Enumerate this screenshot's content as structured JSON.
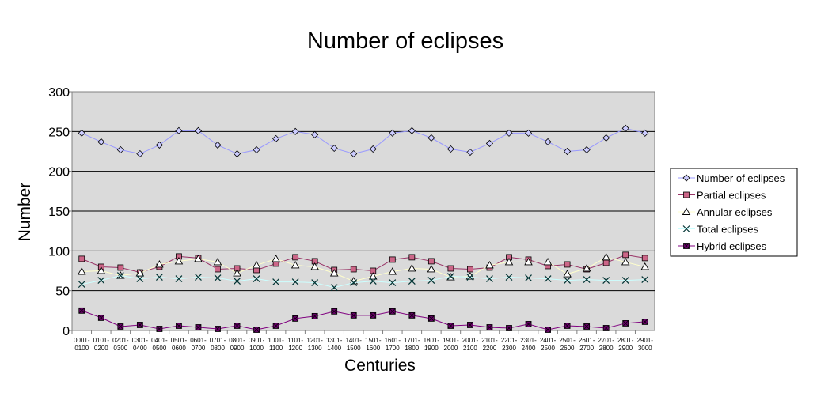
{
  "chart_data": {
    "type": "line",
    "title": "Number of eclipses",
    "xlabel": "Centuries",
    "ylabel": "Number",
    "ylim": [
      0,
      300
    ],
    "yticks": [
      0,
      50,
      100,
      150,
      200,
      250,
      300
    ],
    "grid": true,
    "legend_position": "right",
    "categories": [
      [
        "0001-",
        "0100"
      ],
      [
        "0101-",
        "0200"
      ],
      [
        "0201-",
        "0300"
      ],
      [
        "0301-",
        "0400"
      ],
      [
        "0401-",
        "0500"
      ],
      [
        "0501-",
        "0600"
      ],
      [
        "0601-",
        "0700"
      ],
      [
        "0701-",
        "0800"
      ],
      [
        "0801-",
        "0900"
      ],
      [
        "0901-",
        "1000"
      ],
      [
        "1001-",
        "1100"
      ],
      [
        "1101-",
        "1200"
      ],
      [
        "1201-",
        "1300"
      ],
      [
        "1301-",
        "1400"
      ],
      [
        "1401-",
        "1500"
      ],
      [
        "1501-",
        "1600"
      ],
      [
        "1601-",
        "1700"
      ],
      [
        "1701-",
        "1800"
      ],
      [
        "1801-",
        "1900"
      ],
      [
        "1901-",
        "2000"
      ],
      [
        "2001-",
        "2100"
      ],
      [
        "2101-",
        "2200"
      ],
      [
        "2201-",
        "2300"
      ],
      [
        "2301-",
        "2400"
      ],
      [
        "2401-",
        "2500"
      ],
      [
        "2501-",
        "2600"
      ],
      [
        "2601-",
        "2700"
      ],
      [
        "2701-",
        "2800"
      ],
      [
        "2801-",
        "2900"
      ],
      [
        "2901-",
        "3000"
      ]
    ],
    "series": [
      {
        "name": "Number of eclipses",
        "marker": "diamond",
        "line_color": "#9999ff",
        "marker_fill": "#ccccff",
        "values": [
          248,
          237,
          227,
          222,
          233,
          251,
          251,
          233,
          222,
          227,
          241,
          250,
          246,
          229,
          222,
          228,
          248,
          251,
          242,
          228,
          224,
          235,
          248,
          248,
          237,
          225,
          227,
          242,
          254,
          248
        ]
      },
      {
        "name": "Partial eclipses",
        "marker": "square",
        "line_color": "#993366",
        "marker_fill": "#cc6688",
        "values": [
          90,
          80,
          79,
          73,
          80,
          93,
          91,
          77,
          78,
          76,
          84,
          92,
          87,
          76,
          77,
          75,
          89,
          92,
          87,
          78,
          77,
          79,
          92,
          89,
          81,
          83,
          77,
          85,
          95,
          91
        ]
      },
      {
        "name": "Annular eclipses",
        "marker": "triangle",
        "line_color": "#ffffcc",
        "marker_fill": "#ffffff",
        "values": [
          74,
          75,
          69,
          72,
          83,
          87,
          90,
          86,
          72,
          82,
          90,
          82,
          80,
          72,
          62,
          68,
          74,
          78,
          77,
          67,
          68,
          82,
          86,
          86,
          86,
          71,
          78,
          92,
          86,
          80
        ]
      },
      {
        "name": "Total eclipses",
        "marker": "x",
        "line_color": "#ccffff",
        "marker_fill": "none",
        "values": [
          58,
          63,
          69,
          65,
          67,
          65,
          67,
          66,
          62,
          65,
          61,
          61,
          60,
          54,
          60,
          62,
          60,
          62,
          63,
          68,
          67,
          65,
          67,
          66,
          65,
          63,
          64,
          63,
          63,
          64
        ]
      },
      {
        "name": "Hybrid eclipses",
        "marker": "xsquare",
        "line_color": "#800080",
        "marker_fill": "#660066",
        "values": [
          25,
          16,
          5,
          7,
          2,
          6,
          4,
          2,
          6,
          1,
          6,
          15,
          18,
          24,
          19,
          19,
          24,
          19,
          15,
          6,
          7,
          4,
          3,
          8,
          1,
          6,
          5,
          3,
          9,
          11
        ]
      }
    ]
  }
}
